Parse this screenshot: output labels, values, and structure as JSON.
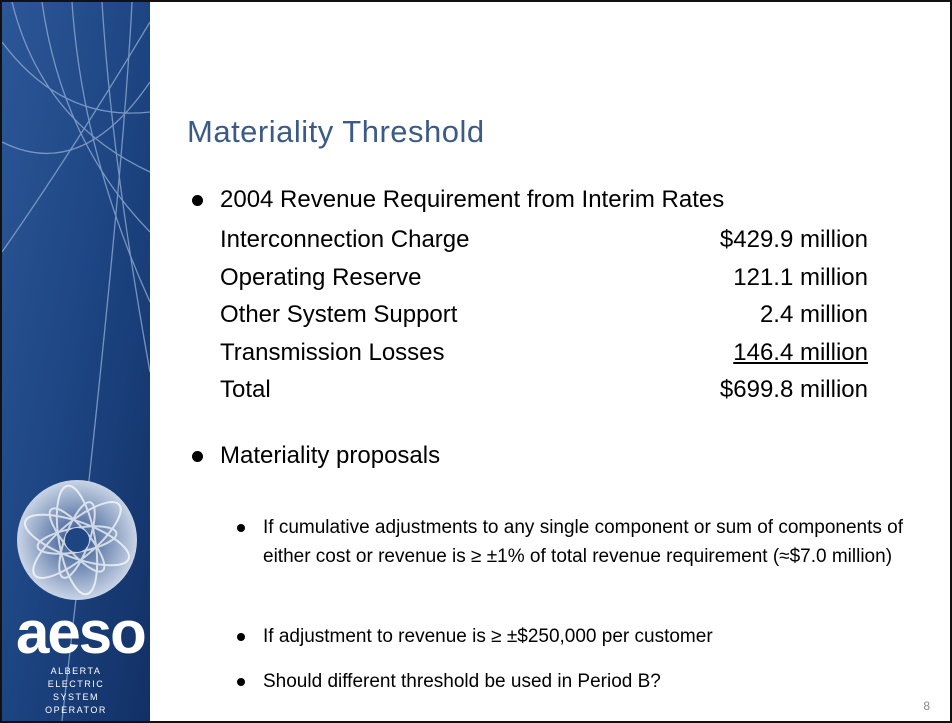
{
  "title": "Materiality Threshold",
  "bullets": [
    {
      "text": "2004 Revenue Requirement from Interim Rates",
      "rows": [
        {
          "label": "Interconnection Charge",
          "amount": "$429.9 million"
        },
        {
          "label": "Operating Reserve",
          "amount": "121.1 million"
        },
        {
          "label": "Other System Support",
          "amount": "2.4 million"
        },
        {
          "label": "Transmission Losses",
          "amount": "146.4 million"
        },
        {
          "label": "Total",
          "amount": "$699.8 million"
        }
      ]
    },
    {
      "text": "Materiality proposals",
      "subbullets": [
        "If cumulative adjustments to any single component or sum of components of either cost or revenue is ≥ ±1% of total revenue requirement (≈$7.0 million)",
        "If adjustment to revenue is ≥ ±$250,000 per customer",
        "Should different threshold be used in Period B?"
      ]
    }
  ],
  "logo": {
    "name": "aeso",
    "lines": [
      "ALBERTA",
      "ELECTRIC",
      "SYSTEM",
      "OPERATOR"
    ]
  },
  "page_number": "8"
}
